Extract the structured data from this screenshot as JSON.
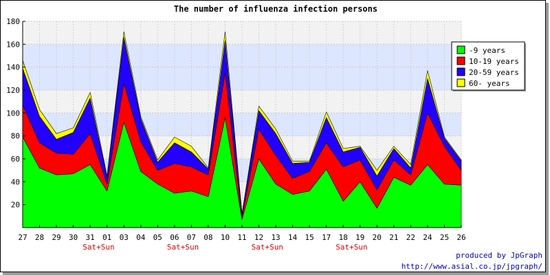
{
  "chart_data": {
    "type": "area",
    "stacked": true,
    "title": "The number of influenza infection persons",
    "categories": [
      "27",
      "28",
      "29",
      "30",
      "31",
      "01",
      "03",
      "04",
      "05",
      "06",
      "07",
      "08",
      "10",
      "11",
      "12",
      "13",
      "14",
      "15",
      "17",
      "18",
      "19",
      "20",
      "21",
      "22",
      "24",
      "25",
      "26"
    ],
    "weekend_label": "Sat+Sun",
    "weekend_after_indices": [
      4,
      9,
      14,
      19
    ],
    "ylim": [
      0,
      180
    ],
    "yticks": [
      20,
      40,
      60,
      80,
      100,
      120,
      140,
      160,
      180
    ],
    "grid": true,
    "legend_position": "right",
    "series": [
      {
        "name": "-9 years",
        "color": "#00ff00",
        "values": [
          79,
          52,
          46,
          47,
          55,
          32,
          92,
          49,
          38,
          30,
          32,
          27,
          96,
          7,
          60,
          38,
          29,
          32,
          51,
          23,
          40,
          17,
          44,
          37,
          55,
          38,
          37
        ]
      },
      {
        "name": "10-19 years",
        "color": "#ff0000",
        "values": [
          28,
          22,
          19,
          17,
          27,
          6,
          34,
          26,
          12,
          26,
          21,
          19,
          39,
          2,
          26,
          25,
          14,
          17,
          23,
          30,
          19,
          16,
          15,
          9,
          45,
          33,
          13
        ]
      },
      {
        "name": "20-59 years",
        "color": "#2200ff",
        "values": [
          32,
          23,
          12,
          19,
          31,
          6,
          40,
          20,
          7,
          18,
          13,
          5,
          28,
          3,
          16,
          19,
          13,
          8,
          22,
          13,
          11,
          12,
          10,
          6,
          30,
          7,
          8
        ]
      },
      {
        "name": "60- years",
        "color": "#ffff00",
        "values": [
          7,
          6,
          5,
          4,
          5,
          1,
          5,
          2,
          2,
          5,
          5,
          1,
          8,
          0,
          4,
          4,
          2,
          1,
          5,
          3,
          1,
          5,
          2,
          3,
          7,
          1,
          1
        ]
      }
    ]
  },
  "footer": {
    "line1": "produced by JpGraph",
    "line2": "http://www.asial.co.jp/jpgraph/"
  }
}
